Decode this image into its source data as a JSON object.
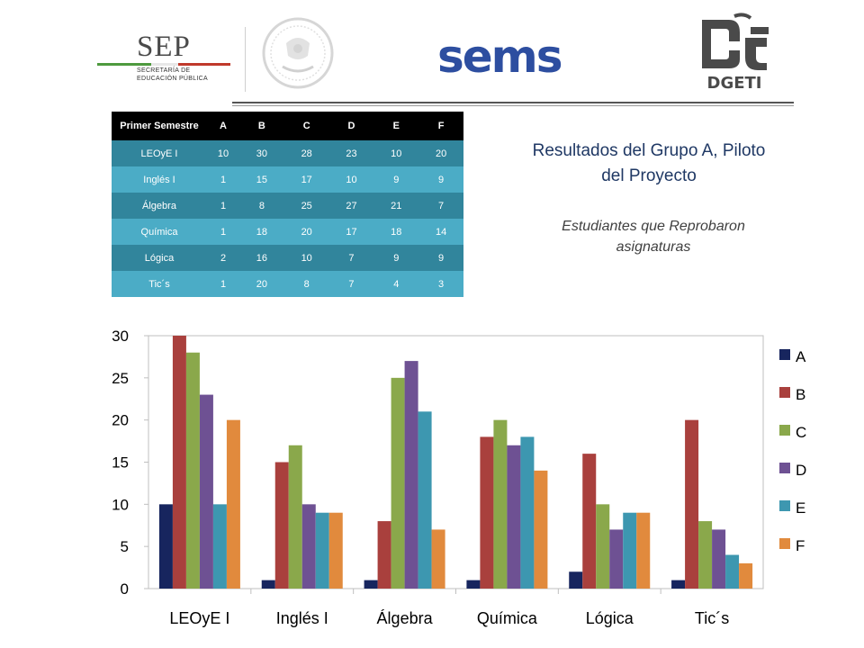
{
  "header": {
    "sep_name": "SEP",
    "sep_line1": "SECRETARÍA DE",
    "sep_line2": "EDUCACIÓN PÚBLICA",
    "sems_name": "sems",
    "dgeti_name": "DGETI"
  },
  "table": {
    "headers": [
      "Primer Semestre",
      "A",
      "B",
      "C",
      "D",
      "E",
      "F"
    ],
    "rows": [
      [
        "LEOyE I",
        "10",
        "30",
        "28",
        "23",
        "10",
        "20"
      ],
      [
        "Inglés I",
        "1",
        "15",
        "17",
        "10",
        "9",
        "9"
      ],
      [
        "Álgebra",
        "1",
        "8",
        "25",
        "27",
        "21",
        "7"
      ],
      [
        "Química",
        "1",
        "18",
        "20",
        "17",
        "18",
        "14"
      ],
      [
        "Lógica",
        "2",
        "16",
        "10",
        "7",
        "9",
        "9"
      ],
      [
        "Tic´s",
        "1",
        "20",
        "8",
        "7",
        "4",
        "3"
      ]
    ]
  },
  "titles": {
    "main": "Resultados del Grupo A, Piloto del Proyecto",
    "subtitle": "Estudiantes que Reprobaron asignaturas"
  },
  "colors": {
    "sep_green": "#4e9a3e",
    "sep_red": "#c0392b",
    "sems_blue": "#2d4ea0",
    "table_header": "#000000",
    "table_row_dark": "#31859c",
    "table_row_light": "#4bacc6"
  },
  "chart_data": {
    "type": "bar",
    "title": "",
    "xlabel": "",
    "ylabel": "",
    "categories": [
      "LEOyE I",
      "Inglés I",
      "Álgebra",
      "Química",
      "Lógica",
      "Tic´s"
    ],
    "ylim": [
      0,
      30
    ],
    "yticks": [
      0,
      5,
      10,
      15,
      20,
      25,
      30
    ],
    "grid": false,
    "legend_position": "right",
    "series": [
      {
        "name": "A",
        "color": "#17255e",
        "values": [
          10,
          1,
          1,
          1,
          2,
          1
        ]
      },
      {
        "name": "B",
        "color": "#a9403d",
        "values": [
          30,
          15,
          8,
          18,
          16,
          20
        ]
      },
      {
        "name": "C",
        "color": "#8aa84b",
        "values": [
          28,
          17,
          25,
          20,
          10,
          8
        ]
      },
      {
        "name": "D",
        "color": "#6e5193",
        "values": [
          23,
          10,
          27,
          17,
          7,
          7
        ]
      },
      {
        "name": "E",
        "color": "#3d97b0",
        "values": [
          10,
          9,
          21,
          18,
          9,
          4
        ]
      },
      {
        "name": "F",
        "color": "#e18a3d",
        "values": [
          20,
          9,
          7,
          14,
          9,
          3
        ]
      }
    ]
  }
}
